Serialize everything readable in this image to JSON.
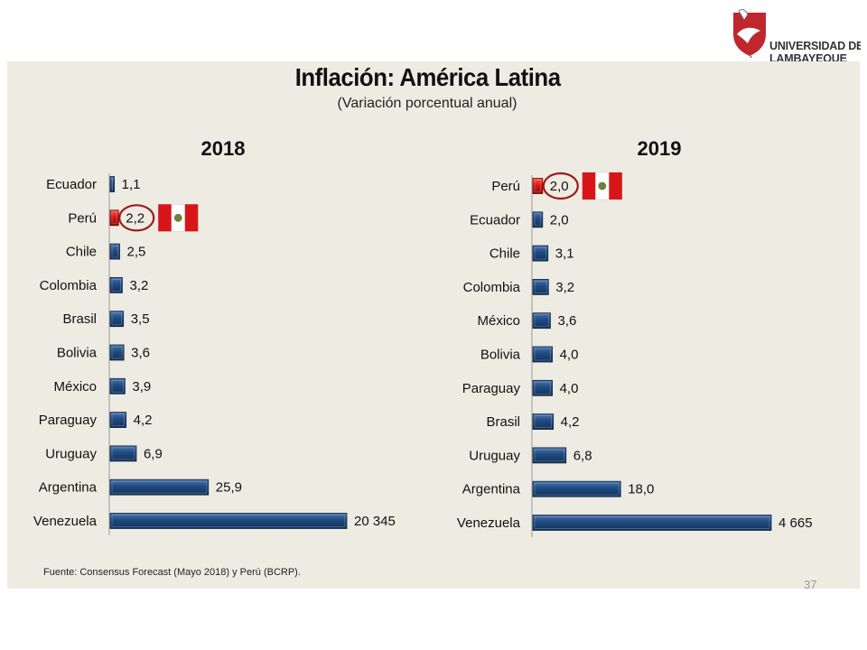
{
  "logo": {
    "line1": "UNIVERSIDAD DE",
    "line2": "LAMBAYEQUE"
  },
  "title": "Inflación: América Latina",
  "subtitle": "(Variación porcentual anual)",
  "source": "Fuente: Consensus Forecast (Mayo 2018) y Perú (BCRP).",
  "page_number": "37",
  "colors": {
    "bar": "#1f4a80",
    "highlight": "#c41515",
    "circle": "#9b1b1b",
    "flag_red": "#d7161a"
  },
  "chart_data": [
    {
      "type": "bar",
      "title": "2018",
      "categories": [
        "Ecuador",
        "Perú",
        "Chile",
        "Colombia",
        "Brasil",
        "Bolivia",
        "México",
        "Paraguay",
        "Uruguay",
        "Argentina",
        "Venezuela"
      ],
      "values": [
        1.1,
        2.2,
        2.5,
        3.2,
        3.5,
        3.6,
        3.9,
        4.2,
        6.9,
        25.9,
        20345
      ],
      "labels": [
        "1,1",
        "2,2",
        "2,5",
        "3,2",
        "3,5",
        "3,6",
        "3,9",
        "4,2",
        "6,9",
        "25,9",
        "20 345"
      ],
      "highlight": "Perú",
      "xlabel": "",
      "ylabel": ""
    },
    {
      "type": "bar",
      "title": "2019",
      "categories": [
        "Perú",
        "Ecuador",
        "Chile",
        "Colombia",
        "México",
        "Bolivia",
        "Paraguay",
        "Brasil",
        "Uruguay",
        "Argentina",
        "Venezuela"
      ],
      "values": [
        2.0,
        2.0,
        3.1,
        3.2,
        3.6,
        4.0,
        4.0,
        4.2,
        6.8,
        18.0,
        4665
      ],
      "labels": [
        "2,0",
        "2,0",
        "3,1",
        "3,2",
        "3,6",
        "4,0",
        "4,0",
        "4,2",
        "6,8",
        "18,0",
        "4 665"
      ],
      "highlight": "Perú",
      "xlabel": "",
      "ylabel": ""
    }
  ]
}
